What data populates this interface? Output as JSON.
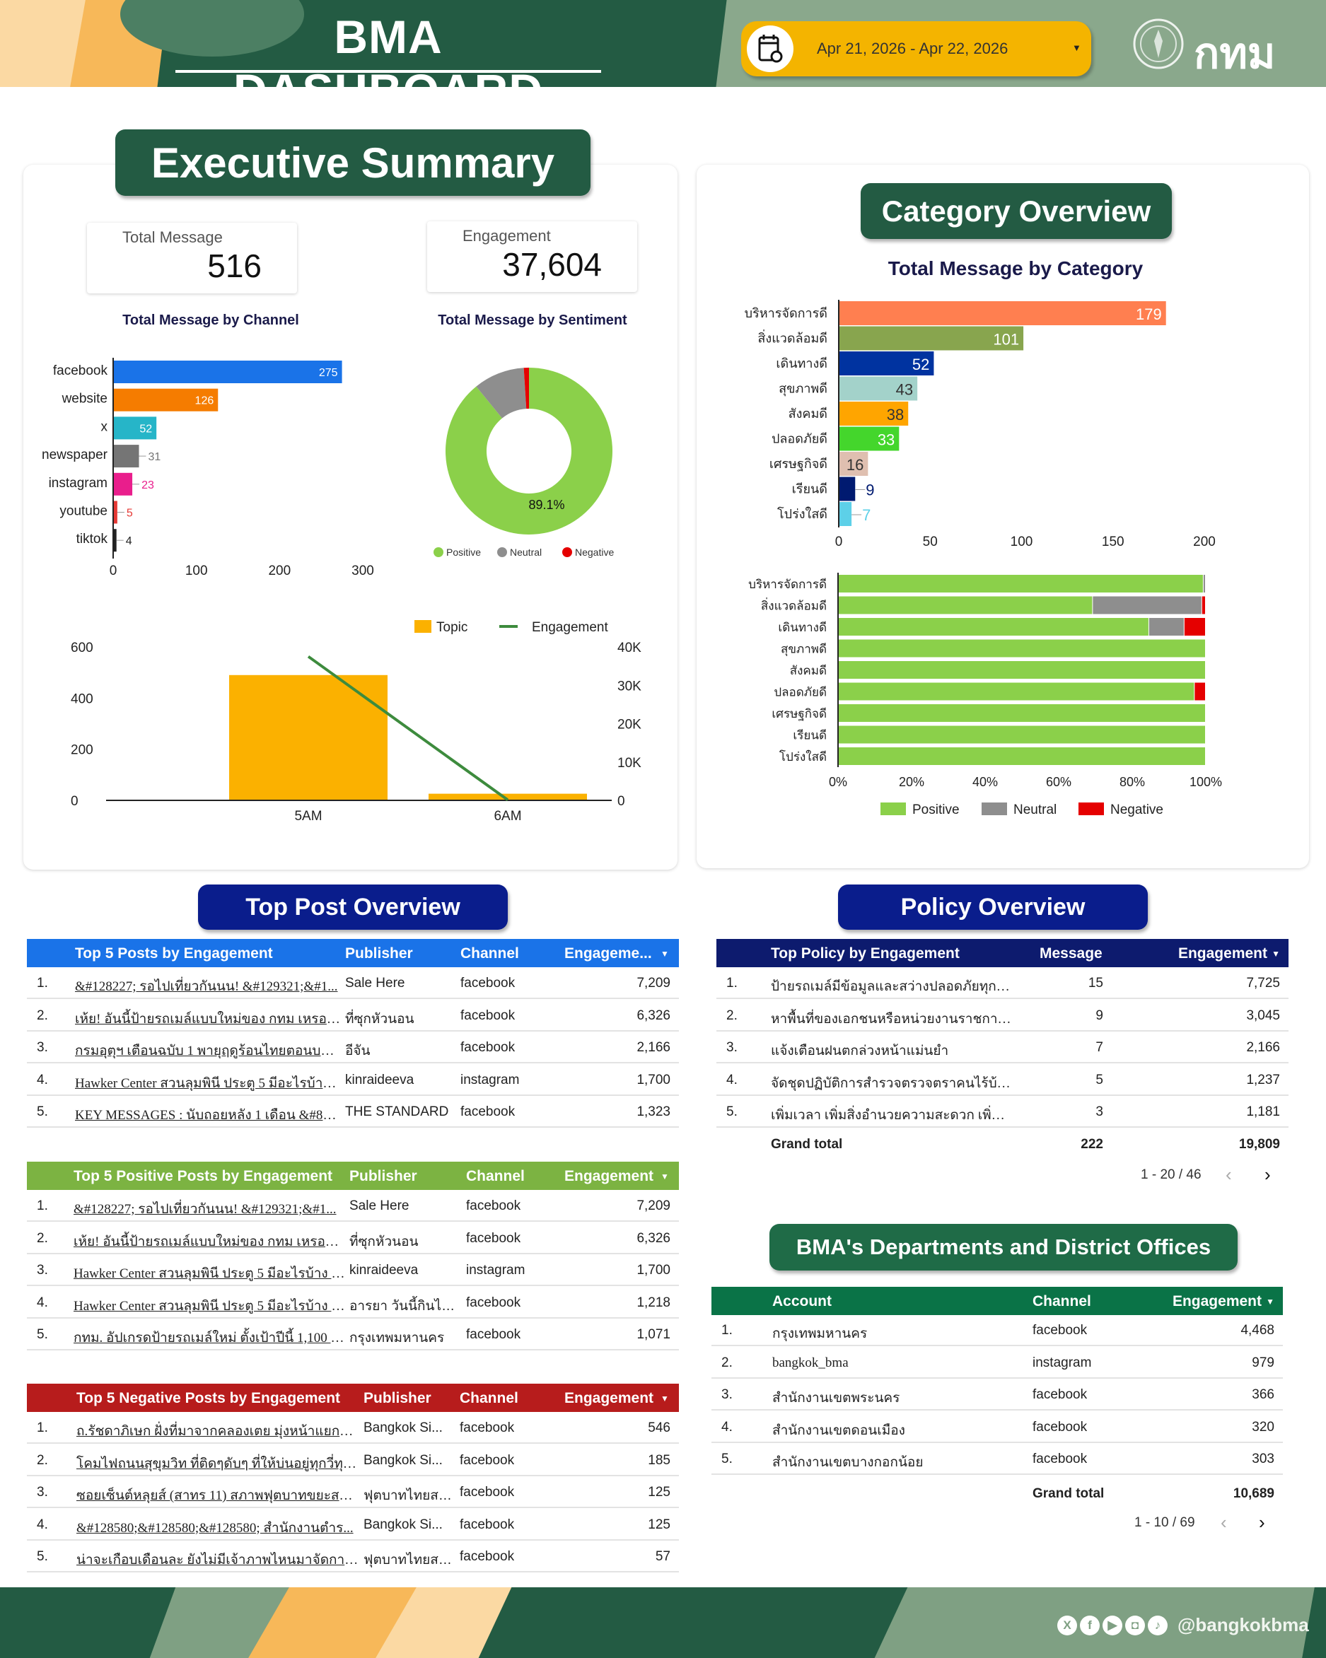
{
  "header": {
    "title": "BMA DASHBOARD",
    "date_range": "Apr 21, 2026 - Apr 22, 2026",
    "logo_text": "กทม",
    "icons": {
      "calendar": "calendar-icon",
      "dropdown": "caret-down-icon"
    }
  },
  "colors": {
    "header_green": "#235B43",
    "sage": "#8aa88c",
    "accent_yellow": "#f4b400",
    "blue_header": "#1a73e8",
    "green_header": "#7cb342",
    "red_header": "#b71c1c",
    "navy_header": "#0d1b6e",
    "dept_header": "#0a7347",
    "badge_navy": "#0a1d8c"
  },
  "executive": {
    "badge": "Executive Summary",
    "kpis": [
      {
        "label": "Total Message",
        "value": "516"
      },
      {
        "label": "Engagement",
        "value": "37,604"
      }
    ],
    "channel_title": "Total Message by Channel",
    "sentiment_title": "Total Message by Sentiment"
  },
  "category": {
    "badge": "Category Overview",
    "title": "Total Message by Category"
  },
  "chart_data": [
    {
      "type": "bar",
      "orientation": "horizontal",
      "title": "Total Message by Channel",
      "categories": [
        "facebook",
        "website",
        "x",
        "newspaper",
        "instagram",
        "youtube",
        "tiktok"
      ],
      "values": [
        275,
        126,
        52,
        31,
        23,
        5,
        4
      ],
      "colors": [
        "#1a73e8",
        "#f57c00",
        "#26b5c8",
        "#757575",
        "#e91e8c",
        "#e53935",
        "#222222"
      ],
      "xlim": [
        0,
        300
      ],
      "xticks": [
        "0",
        "100",
        "200",
        "300"
      ]
    },
    {
      "type": "pie",
      "donut": true,
      "title": "Total Message by Sentiment",
      "labels": [
        "Positive",
        "Neutral",
        "Negative"
      ],
      "values": [
        89.1,
        9.9,
        1.0
      ],
      "colors": [
        "#8bd04a",
        "#8e8e8e",
        "#e50000"
      ],
      "label_shown": "89.1%",
      "legend": "bottom"
    },
    {
      "type": "bar",
      "combo": true,
      "categories": [
        "5AM",
        "6AM"
      ],
      "series": [
        {
          "name": "Topic",
          "type": "bar",
          "axis": "left",
          "values": [
            490,
            26
          ],
          "color": "#fbb100"
        },
        {
          "name": "Engagement",
          "type": "line",
          "axis": "right",
          "values": [
            37500,
            104
          ],
          "color": "#3d8b3d"
        }
      ],
      "ylim_left": [
        0,
        600
      ],
      "yticks_left": [
        "0",
        "200",
        "400",
        "600"
      ],
      "ylim_right": [
        0,
        40000
      ],
      "yticks_right": [
        "0",
        "10K",
        "20K",
        "30K",
        "40K"
      ],
      "legend": "top-right"
    },
    {
      "type": "bar",
      "orientation": "horizontal",
      "title": "Total Message by Category",
      "categories": [
        "บริหารจัดการดี",
        "สิ่งแวดล้อมดี",
        "เดินทางดี",
        "สุขภาพดี",
        "สังคมดี",
        "ปลอดภัยดี",
        "เศรษฐกิจดี",
        "เรียนดี",
        "โปร่งใสดี"
      ],
      "values": [
        179,
        101,
        52,
        43,
        38,
        33,
        16,
        9,
        7
      ],
      "colors": [
        "#ff7f50",
        "#88a54e",
        "#0033a0",
        "#a3d2ca",
        "#ffa500",
        "#44d62c",
        "#dfbfb0",
        "#001a70",
        "#5dd0e8"
      ],
      "xlim": [
        0,
        200
      ],
      "xticks": [
        "0",
        "50",
        "100",
        "150",
        "200"
      ]
    },
    {
      "type": "bar",
      "stacked": "percent",
      "orientation": "horizontal",
      "categories": [
        "บริหารจัดการดี",
        "สิ่งแวดล้อมดี",
        "เดินทางดี",
        "สุขภาพดี",
        "สังคมดี",
        "ปลอดภัยดี",
        "เศรษฐกิจดี",
        "เรียนดี",
        "โปร่งใสดี"
      ],
      "series": [
        {
          "name": "Positive",
          "values": [
            99.4,
            69.3,
            84.6,
            100,
            100,
            97,
            100,
            100,
            100
          ],
          "color": "#8bd04a"
        },
        {
          "name": "Neutral",
          "values": [
            0.6,
            29.7,
            9.6,
            0,
            0,
            0,
            0,
            0,
            0
          ],
          "color": "#8e8e8e"
        },
        {
          "name": "Negative",
          "values": [
            0,
            1.0,
            5.8,
            0,
            0,
            3,
            0,
            0,
            0
          ],
          "color": "#e50000"
        }
      ],
      "xlim": [
        0,
        100
      ],
      "xticks": [
        "0%",
        "20%",
        "40%",
        "60%",
        "80%",
        "100%"
      ],
      "legend": "bottom"
    }
  ],
  "top_post": {
    "badge": "Top Post Overview",
    "tables": [
      {
        "headers": [
          "Top 5 Posts by Engagement",
          "Publisher",
          "Channel",
          "Engageme..."
        ],
        "rows": [
          [
            "1.",
            "&#128227; รอไปเที่ยวกันนน! &#129321;&#1...",
            "Sale Here",
            "facebook",
            "7,209"
          ],
          [
            "2.",
            "เห้ย! อันนี้ป้ายรถเมล์แบบใหม่ของ กทม เหรอครับ เรี...",
            "ที่ซุกหัวนอน",
            "facebook",
            "6,326"
          ],
          [
            "3.",
            "กรมอุตุฯ เตือนฉบับ 1 พายุฤดูร้อนไทยตอนบน เช็ก ...",
            "อีจัน",
            "facebook",
            "2,166"
          ],
          [
            "4.",
            "Hawker Center สวนลุมพินี ประตู 5 มีอะไรบ้าง ...",
            "kinraideeva",
            "instagram",
            "1,700"
          ],
          [
            "5.",
            "KEY MESSAGES : นับถอยหลัง 1 เดือน &#821...",
            "THE STANDARD",
            "facebook",
            "1,323"
          ]
        ]
      },
      {
        "headers": [
          "Top 5 Positive Posts by Engagement",
          "Publisher",
          "Channel",
          "Engagement"
        ],
        "rows": [
          [
            "1.",
            "&#128227; รอไปเที่ยวกันนน! &#129321;&#1...",
            "Sale Here",
            "facebook",
            "7,209"
          ],
          [
            "2.",
            "เห้ย! อันนี้ป้ายรถเมล์แบบใหม่ของ กทม เหรอครับ เรีย...",
            "ที่ซุกหัวนอน",
            "facebook",
            "6,326"
          ],
          [
            "3.",
            "Hawker Center สวนลุมพินี ประตู 5 มีอะไรบ้าง ไ...",
            "kinraideeva",
            "instagram",
            "1,700"
          ],
          [
            "4.",
            "Hawker Center สวนลุมพินี ประตู 5 มีอะไรบ้าง ไ...",
            "อารยา วันนี้กินไรดี...",
            "facebook",
            "1,218"
          ],
          [
            "5.",
            "กทม. อัปเกรดป้ายรถเมล์ใหม่ ตั้งเป้าปีนี้ 1,100 ป้าย ...",
            "กรุงเทพมหานคร",
            "facebook",
            "1,071"
          ]
        ]
      },
      {
        "headers": [
          "Top 5 Negative Posts by Engagement",
          "Publisher",
          "Channel",
          "Engagement"
        ],
        "rows": [
          [
            "1.",
            "ถ.รัชดาภิเษก ฝั่งที่มาจากคลองเตย มุ่งหน้าแยกอโศก ไม...",
            "Bangkok Si...",
            "facebook",
            "546"
          ],
          [
            "2.",
            "โคมไฟถนนสุขุมวิท ที่ติดๆดับๆ ที่ให้บ่นอยู่ทุกวี่ทุกวันนี้ ไ...",
            "Bangkok Si...",
            "facebook",
            "185"
          ],
          [
            "3.",
            "ซอยเซ็นต์หลุยส์ (สาทร 11) สภาพฟุตบาทขยะสมสลาย&...",
            "ฟุตบาทไทยสไ...",
            "facebook",
            "125"
          ],
          [
            "4.",
            "&#128580;&#128580;&#128580; สำนักงานตำร...",
            "Bangkok Si...",
            "facebook",
            "125"
          ],
          [
            "5.",
            "น่าจะเกือบเดือนละ ยังไม่มีเจ้าภาพไหนมาจัดการ&#825...",
            "ฟุตบาทไทยสไ...",
            "facebook",
            "57"
          ]
        ]
      }
    ]
  },
  "policy": {
    "badge": "Policy Overview",
    "headers": [
      "Top Policy by Engagement",
      "Message",
      "Engagement"
    ],
    "rows": [
      [
        "1.",
        "ป้ายรถเมล์มีข้อมูลและสว่างปลอดภัยทุกป้าย",
        "15",
        "7,725"
      ],
      [
        "2.",
        "หาพื้นที่ของเอกชนหรือหน่วยงานราชการที่สามา...",
        "9",
        "3,045"
      ],
      [
        "3.",
        "แจ้งเตือนฝนตกล่วงหน้าแม่นยำ",
        "7",
        "2,166"
      ],
      [
        "4.",
        "จัดชุดปฏิบัติการสำรวจตรวจตราคนไร้บ้านและข...",
        "5",
        "1,237"
      ],
      [
        "5.",
        "เพิ่มเวลา เพิ่มสิ่งอำนวยความสะดวก เพิ่มการเข้า...",
        "3",
        "1,181"
      ]
    ],
    "grand_total": {
      "label": "Grand total",
      "message": "222",
      "engagement": "19,809"
    },
    "pagination": "1 - 20 / 46"
  },
  "departments": {
    "badge": "BMA's Departments and District Offices",
    "headers": [
      "Account",
      "Channel",
      "Engagement"
    ],
    "rows": [
      [
        "1.",
        "กรุงเทพมหานคร",
        "facebook",
        "4,468"
      ],
      [
        "2.",
        "bangkok_bma",
        "instagram",
        "979"
      ],
      [
        "3.",
        "สำนักงานเขตพระนคร",
        "facebook",
        "366"
      ],
      [
        "4.",
        "สำนักงานเขตดอนเมือง",
        "facebook",
        "320"
      ],
      [
        "5.",
        "สำนักงานเขตบางกอกน้อย",
        "facebook",
        "303"
      ]
    ],
    "grand_total": {
      "label": "Grand total",
      "engagement": "10,689"
    },
    "pagination": "1 - 10 / 69"
  },
  "footer": {
    "handle": "@bangkokbma",
    "socials": [
      "x-icon",
      "facebook-icon",
      "youtube-icon",
      "instagram-icon",
      "tiktok-icon"
    ]
  }
}
